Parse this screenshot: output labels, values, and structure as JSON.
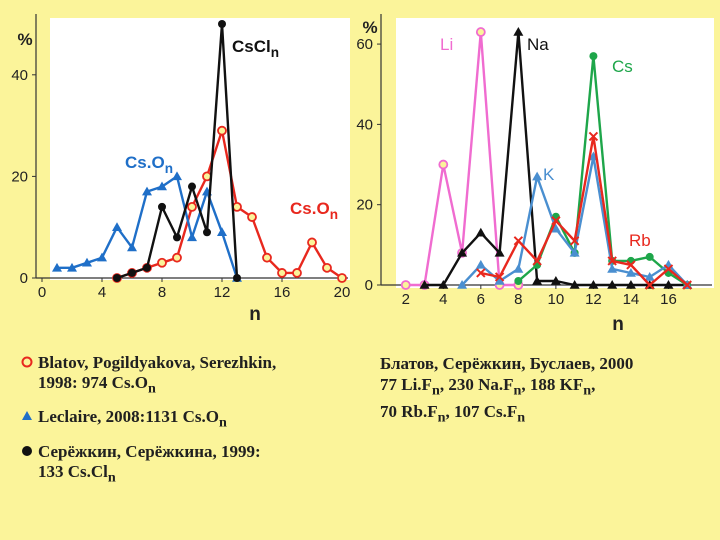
{
  "chart_data": [
    {
      "type": "line",
      "title": "",
      "ylabel": "%",
      "xlabel": "n",
      "xlim": [
        0,
        20
      ],
      "ylim": [
        0,
        50
      ],
      "xticks": [
        0,
        4,
        8,
        12,
        16,
        20
      ],
      "yticks": [
        0,
        20,
        40
      ],
      "grid": false,
      "series": [
        {
          "name": "Cs.On",
          "label_main": "Cs.O",
          "label_sub": "n",
          "color": "#e8281e",
          "marker": "open-circle",
          "x": [
            5,
            6,
            7,
            8,
            9,
            10,
            11,
            12,
            13,
            14,
            15,
            16,
            17,
            18,
            19,
            20
          ],
          "y": [
            0,
            1,
            2,
            3,
            4,
            14,
            20,
            29,
            14,
            12,
            4,
            1,
            1,
            7,
            2,
            0
          ]
        },
        {
          "name": "Cs.On",
          "label_main": "Cs.O",
          "label_sub": "n",
          "color": "#1f6fc8",
          "marker": "triangle",
          "x": [
            1,
            2,
            3,
            4,
            5,
            6,
            7,
            8,
            9,
            10,
            11,
            12,
            13
          ],
          "y": [
            2,
            2,
            3,
            4,
            10,
            6,
            17,
            18,
            20,
            8,
            17,
            9,
            0
          ]
        },
        {
          "name": "CsCln",
          "label_main": "CsCl",
          "label_sub": "n",
          "color": "#111111",
          "marker": "filled-circle",
          "x": [
            5,
            6,
            7,
            8,
            9,
            10,
            11,
            12,
            13
          ],
          "y": [
            0,
            1,
            2,
            14,
            8,
            18,
            9,
            50,
            0
          ]
        }
      ]
    },
    {
      "type": "line",
      "title": "",
      "ylabel": "%",
      "xlabel": "n",
      "xlim": [
        1,
        18
      ],
      "ylim": [
        0,
        65
      ],
      "xticks": [
        2,
        4,
        6,
        8,
        10,
        12,
        14,
        16
      ],
      "yticks": [
        0,
        20,
        40,
        60
      ],
      "grid": false,
      "series": [
        {
          "name": "Li",
          "color": "#f06cd0",
          "marker": "open-circle",
          "x": [
            2,
            3,
            4,
            5,
            6,
            7,
            8
          ],
          "y": [
            0,
            0,
            30,
            8,
            63,
            0,
            0
          ]
        },
        {
          "name": "Na",
          "color": "#111111",
          "marker": "triangle",
          "x": [
            3,
            4,
            5,
            6,
            7,
            8,
            9,
            10,
            11,
            12,
            13,
            14,
            15,
            16,
            17
          ],
          "y": [
            0,
            0,
            8,
            13,
            8,
            63,
            1,
            1,
            0,
            0,
            0,
            0,
            0,
            0,
            0
          ]
        },
        {
          "name": "Cs",
          "color": "#1ea64a",
          "marker": "filled-circle",
          "x": [
            8,
            9,
            10,
            11,
            12,
            13,
            14,
            15,
            16,
            17
          ],
          "y": [
            1,
            5,
            17,
            8,
            57,
            6,
            6,
            7,
            3,
            0
          ]
        },
        {
          "name": "K",
          "color": "#4a8fd0",
          "marker": "triangle",
          "x": [
            5,
            6,
            7,
            8,
            9,
            10,
            11,
            12,
            13,
            14,
            15,
            16,
            17
          ],
          "y": [
            0,
            5,
            1,
            4,
            27,
            14,
            8,
            32,
            4,
            3,
            2,
            5,
            0
          ]
        },
        {
          "name": "Rb",
          "color": "#e8281e",
          "marker": "cross",
          "x": [
            6,
            7,
            8,
            9,
            10,
            11,
            12,
            13,
            14,
            15,
            16,
            17
          ],
          "y": [
            3,
            2,
            11,
            6,
            16,
            11,
            37,
            6,
            5,
            0,
            4,
            0
          ]
        }
      ]
    }
  ],
  "legend": [
    {
      "symbol": "open-circle",
      "color": "#e8281e",
      "line1": "Blatov, Pogildyakova, Serezhkin,",
      "line2_main": "1998: 974 Cs.O",
      "line2_sub": "n"
    },
    {
      "symbol": "triangle",
      "color": "#1f6fc8",
      "line1_main": "Leclaire, 2008:1131 Cs.O",
      "line1_sub": "n"
    },
    {
      "symbol": "filled-circle",
      "color": "#111111",
      "line1": "Серёжкин, Серёжкина, 1999:",
      "line2_main": "133 Cs.Cl",
      "line2_sub": "n"
    }
  ],
  "notes": {
    "line1": "Блатов, Серёжкин, Буслаев, 2000",
    "line2_parts": [
      {
        "main": "77 Li.F",
        "sub": "n"
      },
      {
        "main": ", 230 Na.F",
        "sub": "n"
      },
      {
        "main": ", 188 KF",
        "sub": "n"
      },
      {
        "main": ",",
        "sub": ""
      }
    ],
    "line3_parts": [
      {
        "main": "70 Rb.F",
        "sub": "n"
      },
      {
        "main": ", 107 Cs.F",
        "sub": "n"
      }
    ]
  }
}
